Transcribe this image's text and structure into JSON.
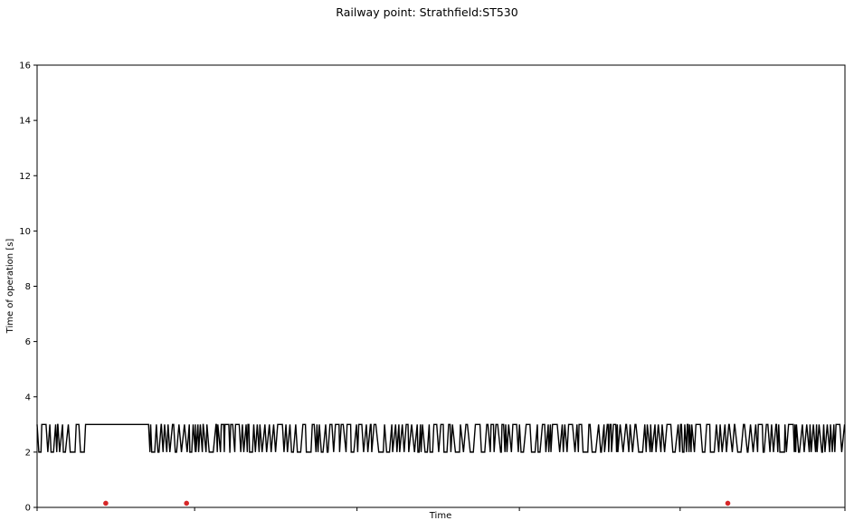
{
  "chart_data": {
    "type": "line",
    "title": "Railway point: Strathfield:ST530",
    "xlabel": "Time",
    "ylabel": "Time of operation [s]",
    "ylim": [
      0,
      16
    ],
    "yticks": [
      0,
      2,
      4,
      6,
      8,
      10,
      12,
      14,
      16
    ],
    "xlim": [
      0,
      1000
    ],
    "xticks": [
      0,
      195,
      396,
      597,
      796,
      1000
    ],
    "grid": false,
    "legend": "none",
    "series": [
      {
        "kind": "line",
        "color": "#000000",
        "values_pattern": [
          {
            "x_from": 0,
            "x_to": 60,
            "mode": "oscillate",
            "levels": [
              2,
              3
            ]
          },
          {
            "x_from": 60,
            "x_to": 138,
            "mode": "flat",
            "levels": [
              3
            ]
          },
          {
            "x_from": 138,
            "x_to": 196,
            "mode": "oscillate",
            "levels": [
              2,
              3
            ]
          },
          {
            "x_from": 196,
            "x_to": 1000,
            "mode": "oscillate",
            "levels": [
              2,
              3
            ]
          }
        ]
      },
      {
        "kind": "scatter",
        "color": "#d62728",
        "x": [
          85,
          185,
          855
        ],
        "y": [
          0.1,
          0.1,
          0.1
        ]
      }
    ]
  }
}
